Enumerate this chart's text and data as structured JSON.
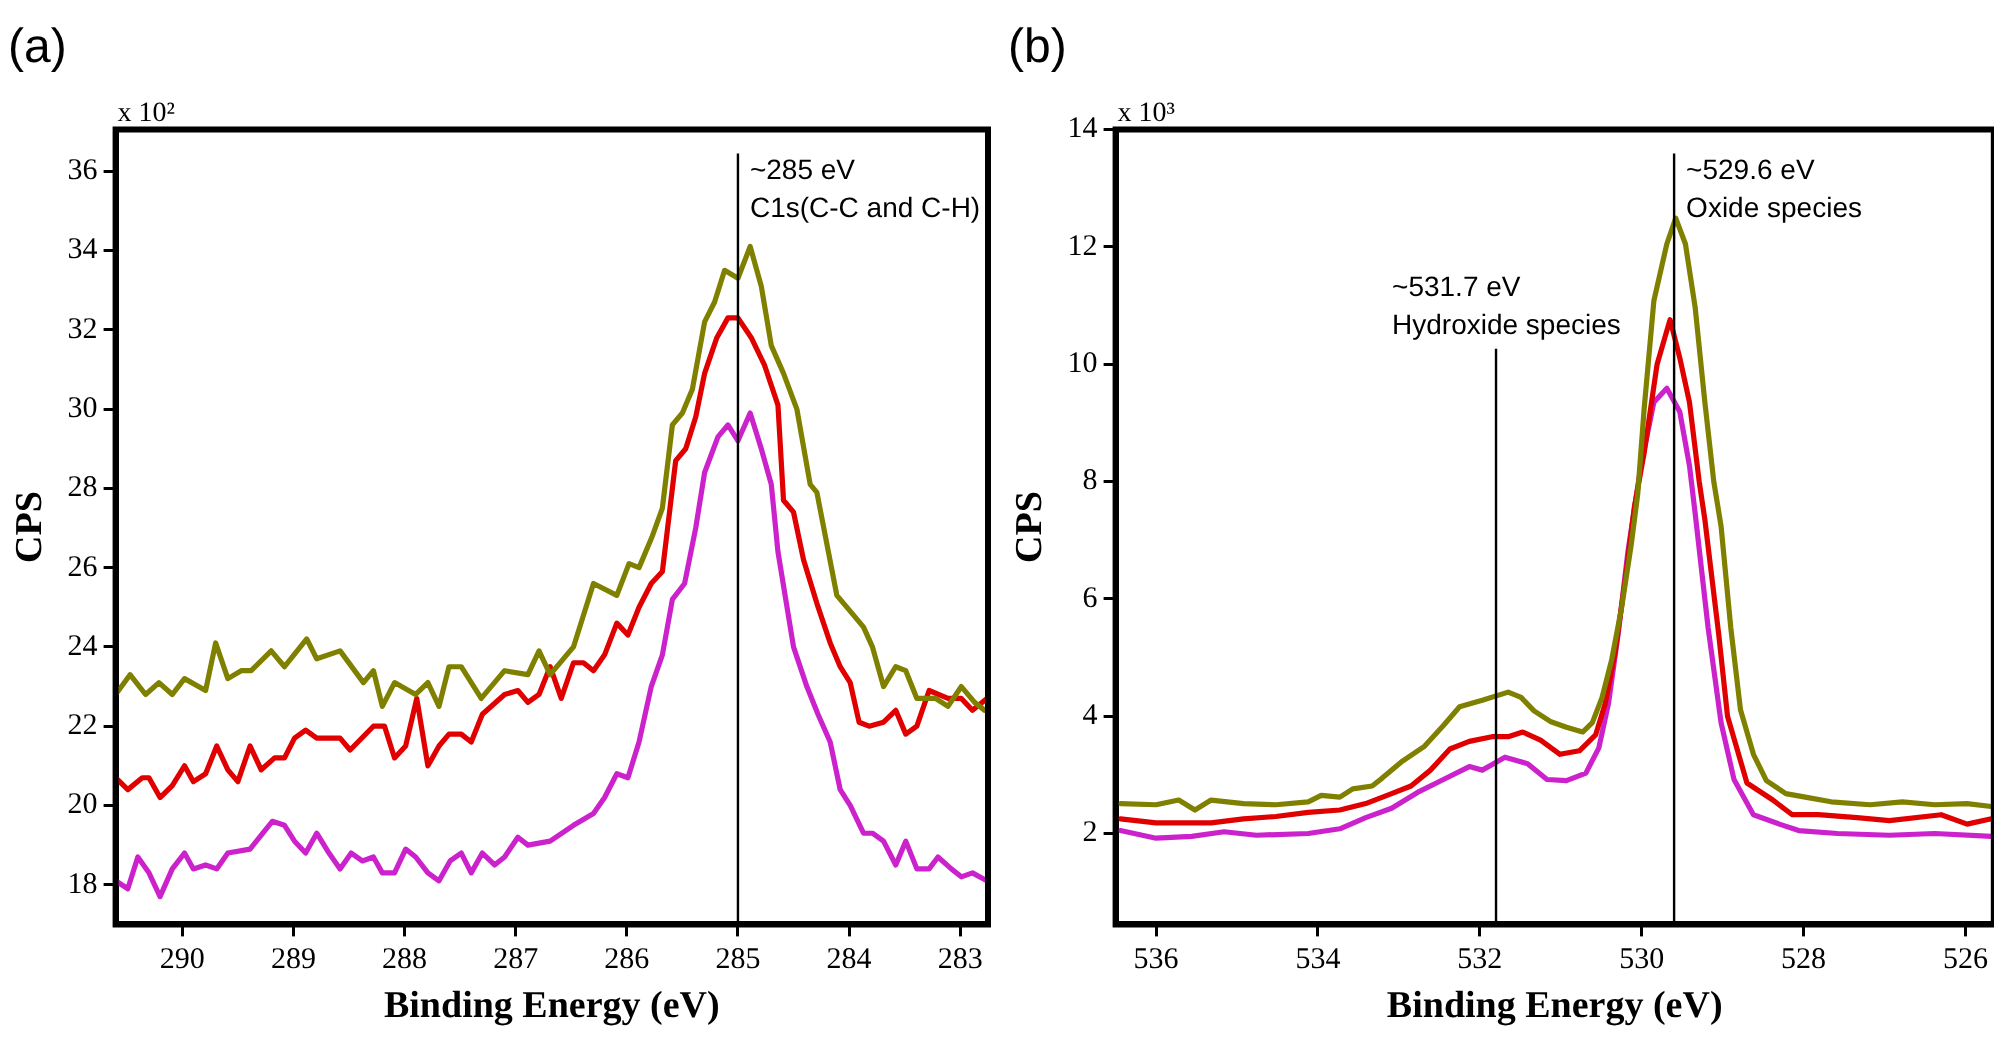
{
  "chart_data": [
    {
      "type": "line",
      "title": "(a)",
      "xlabel": "Binding Energy (eV)",
      "ylabel": "CPS",
      "xlim": [
        290.6,
        282.75
      ],
      "ylim": [
        17,
        37.05
      ],
      "xticks": [
        290,
        289,
        288,
        287,
        286,
        285,
        284,
        283
      ],
      "yticks": [
        18,
        20,
        22,
        24,
        26,
        28,
        30,
        32,
        34,
        36
      ],
      "grid": false,
      "legend": false,
      "marker": "none",
      "line_style": "solid",
      "annotations": [
        "x 10²"
      ],
      "ref_lines": [
        {
          "axis": "x",
          "value": 285,
          "label": "~285 eV\nC1s(C-C and C-H)",
          "color": "#000000"
        }
      ],
      "series": [
        {
          "color": "#808000",
          "x": [
            290.6,
            290.47,
            290.33,
            290.21,
            290.09,
            289.98,
            289.79,
            289.7,
            289.59,
            289.47,
            289.38,
            289.2,
            289.08,
            288.88,
            288.79,
            288.58,
            288.37,
            288.28,
            288.2,
            288.09,
            287.9,
            287.79,
            287.69,
            287.6,
            287.49,
            287.31,
            287.1,
            286.89,
            286.79,
            286.69,
            286.48,
            286.3,
            286.09,
            285.98,
            285.89,
            285.77,
            285.68,
            285.59,
            285.5,
            285.41,
            285.3,
            285.21,
            285.12,
            285.0,
            284.89,
            284.79,
            284.7,
            284.59,
            284.47,
            284.35,
            284.29,
            284.11,
            283.96,
            283.87,
            283.79,
            283.69,
            283.58,
            283.49,
            283.39,
            283.22,
            283.11,
            282.99,
            282.87,
            282.78
          ],
          "values": [
            22.8,
            23.3,
            22.8,
            23.1,
            22.8,
            23.2,
            22.9,
            24.1,
            23.2,
            23.4,
            23.4,
            23.9,
            23.5,
            24.2,
            23.7,
            23.9,
            23.1,
            23.4,
            22.5,
            23.1,
            22.8,
            23.1,
            22.5,
            23.5,
            23.5,
            22.7,
            23.4,
            23.3,
            23.9,
            23.3,
            24.0,
            25.6,
            25.3,
            26.1,
            26.0,
            26.8,
            27.5,
            29.6,
            29.9,
            30.5,
            32.2,
            32.7,
            33.5,
            33.3,
            34.1,
            33.1,
            31.6,
            30.9,
            30.0,
            28.1,
            27.9,
            25.3,
            24.8,
            24.5,
            24.0,
            23.0,
            23.5,
            23.4,
            22.7,
            22.7,
            22.5,
            23.0,
            22.6,
            22.4
          ]
        },
        {
          "color": "#e00000",
          "x": [
            290.6,
            290.49,
            290.36,
            290.3,
            290.2,
            290.09,
            289.98,
            289.9,
            289.79,
            289.69,
            289.59,
            289.5,
            289.39,
            289.29,
            289.17,
            289.08,
            288.99,
            288.89,
            288.79,
            288.58,
            288.49,
            288.28,
            288.18,
            288.09,
            287.99,
            287.89,
            287.79,
            287.69,
            287.6,
            287.49,
            287.4,
            287.3,
            287.1,
            286.98,
            286.89,
            286.79,
            286.69,
            286.59,
            286.48,
            286.39,
            286.3,
            286.2,
            286.09,
            285.99,
            285.89,
            285.78,
            285.68,
            285.56,
            285.47,
            285.38,
            285.3,
            285.19,
            285.09,
            285.0,
            284.88,
            284.76,
            284.64,
            284.59,
            284.5,
            284.41,
            284.29,
            284.17,
            284.08,
            283.99,
            283.91,
            283.82,
            283.69,
            283.58,
            283.49,
            283.39,
            283.28,
            283.11,
            282.99,
            282.89,
            282.76
          ],
          "values": [
            20.7,
            20.4,
            20.7,
            20.7,
            20.2,
            20.5,
            21.0,
            20.6,
            20.8,
            21.5,
            20.9,
            20.6,
            21.5,
            20.9,
            21.2,
            21.2,
            21.7,
            21.9,
            21.7,
            21.7,
            21.4,
            22.0,
            22.0,
            21.2,
            21.5,
            22.7,
            21.0,
            21.5,
            21.8,
            21.8,
            21.6,
            22.3,
            22.8,
            22.9,
            22.6,
            22.8,
            23.5,
            22.7,
            23.6,
            23.6,
            23.4,
            23.8,
            24.6,
            24.3,
            25.0,
            25.6,
            25.9,
            28.7,
            29.0,
            29.8,
            30.9,
            31.8,
            32.3,
            32.3,
            31.8,
            31.1,
            30.1,
            27.7,
            27.4,
            26.2,
            25.1,
            24.1,
            23.5,
            23.1,
            22.1,
            22.0,
            22.1,
            22.4,
            21.8,
            22.0,
            22.9,
            22.7,
            22.7,
            22.4,
            22.7
          ]
        },
        {
          "color": "#cc22cc",
          "x": [
            290.6,
            290.49,
            290.4,
            290.3,
            290.2,
            290.09,
            289.98,
            289.9,
            289.79,
            289.69,
            289.59,
            289.39,
            289.19,
            289.08,
            288.99,
            288.89,
            288.79,
            288.68,
            288.58,
            288.48,
            288.38,
            288.28,
            288.2,
            288.09,
            287.99,
            287.9,
            287.79,
            287.69,
            287.59,
            287.49,
            287.4,
            287.3,
            287.19,
            287.1,
            286.98,
            286.89,
            286.69,
            286.48,
            286.3,
            286.2,
            286.09,
            285.99,
            285.89,
            285.78,
            285.68,
            285.59,
            285.48,
            285.38,
            285.3,
            285.18,
            285.09,
            285.0,
            284.89,
            284.79,
            284.7,
            284.64,
            284.5,
            284.38,
            284.28,
            284.17,
            284.08,
            283.99,
            283.87,
            283.79,
            283.69,
            283.58,
            283.49,
            283.39,
            283.28,
            283.2,
            283.08,
            282.99,
            282.89,
            282.76
          ],
          "values": [
            18.1,
            17.9,
            18.7,
            18.3,
            17.7,
            18.4,
            18.8,
            18.4,
            18.5,
            18.4,
            18.8,
            18.9,
            19.6,
            19.5,
            19.1,
            18.8,
            19.3,
            18.8,
            18.4,
            18.8,
            18.6,
            18.7,
            18.3,
            18.3,
            18.9,
            18.7,
            18.3,
            18.1,
            18.6,
            18.8,
            18.3,
            18.8,
            18.5,
            18.7,
            19.2,
            19.0,
            19.1,
            19.5,
            19.8,
            20.2,
            20.8,
            20.7,
            21.6,
            23.0,
            23.8,
            25.2,
            25.6,
            27.0,
            28.4,
            29.3,
            29.6,
            29.2,
            29.9,
            29.0,
            28.1,
            26.4,
            24.0,
            23.0,
            22.3,
            21.6,
            20.4,
            20.0,
            19.3,
            19.3,
            19.1,
            18.5,
            19.1,
            18.4,
            18.4,
            18.7,
            18.4,
            18.2,
            18.3,
            18.1
          ]
        }
      ]
    },
    {
      "type": "line",
      "title": "(b)",
      "xlabel": "Binding Energy (eV)",
      "ylabel": "CPS",
      "xlim": [
        536.5,
        525.65
      ],
      "ylim": [
        0.45,
        14
      ],
      "xticks": [
        536,
        534,
        532,
        530,
        528,
        526
      ],
      "yticks": [
        2,
        4,
        6,
        8,
        10,
        12,
        14
      ],
      "grid": false,
      "legend": false,
      "marker": "none",
      "line_style": "solid",
      "annotations": [
        "x 10³",
        {
          "text": "~531.7 eV\nHydroxide species",
          "x": 531.8,
          "y": 10.4
        }
      ],
      "ref_lines": [
        {
          "axis": "x",
          "value": 531.8,
          "color": "#000000"
        },
        {
          "axis": "x",
          "value": 529.6,
          "label": "~529.6 eV\nOxide species",
          "color": "#000000"
        }
      ],
      "series": [
        {
          "color": "#808000",
          "x": [
            536.44,
            536.0,
            535.72,
            535.52,
            535.32,
            534.92,
            534.52,
            534.12,
            533.96,
            533.73,
            533.57,
            533.33,
            533.21,
            532.97,
            532.69,
            532.45,
            532.25,
            531.97,
            531.65,
            531.49,
            531.33,
            531.13,
            530.93,
            530.73,
            530.61,
            530.49,
            530.37,
            530.25,
            530.13,
            530.05,
            529.97,
            529.85,
            529.69,
            529.58,
            529.46,
            529.34,
            529.22,
            529.11,
            529.02,
            528.9,
            528.78,
            528.62,
            528.46,
            528.22,
            527.98,
            527.66,
            527.18,
            526.78,
            526.38,
            525.98,
            525.68
          ],
          "values": [
            2.51,
            2.49,
            2.57,
            2.4,
            2.57,
            2.51,
            2.49,
            2.54,
            2.65,
            2.62,
            2.76,
            2.81,
            2.94,
            3.22,
            3.48,
            3.84,
            4.16,
            4.27,
            4.41,
            4.32,
            4.09,
            3.91,
            3.81,
            3.73,
            3.89,
            4.32,
            4.97,
            5.84,
            6.92,
            7.78,
            9.24,
            11.08,
            12.05,
            12.49,
            12.05,
            10.97,
            9.35,
            8.0,
            7.24,
            5.51,
            4.11,
            3.35,
            2.9,
            2.68,
            2.62,
            2.54,
            2.49,
            2.54,
            2.49,
            2.51,
            2.46
          ]
        },
        {
          "color": "#e00000",
          "x": [
            536.44,
            536.0,
            535.32,
            534.92,
            534.52,
            534.12,
            533.73,
            533.41,
            533.09,
            532.85,
            532.61,
            532.37,
            532.13,
            531.85,
            531.65,
            531.47,
            531.25,
            531.01,
            530.77,
            530.57,
            530.45,
            530.33,
            530.21,
            530.09,
            529.97,
            529.81,
            529.65,
            529.53,
            529.41,
            529.29,
            529.22,
            529.05,
            528.94,
            528.7,
            528.38,
            528.14,
            527.82,
            527.34,
            526.94,
            526.3,
            525.98,
            525.68
          ],
          "values": [
            2.25,
            2.18,
            2.18,
            2.25,
            2.29,
            2.36,
            2.4,
            2.51,
            2.68,
            2.81,
            3.08,
            3.44,
            3.57,
            3.65,
            3.65,
            3.73,
            3.59,
            3.35,
            3.41,
            3.68,
            4.22,
            5.08,
            6.27,
            7.57,
            8.49,
            10.0,
            10.76,
            10.11,
            9.35,
            8.0,
            7.35,
            5.41,
            4.0,
            2.86,
            2.57,
            2.32,
            2.32,
            2.27,
            2.22,
            2.32,
            2.16,
            2.25
          ]
        },
        {
          "color": "#cc22cc",
          "x": [
            536.44,
            536.0,
            535.56,
            535.16,
            534.76,
            534.12,
            533.73,
            533.41,
            533.09,
            532.77,
            532.45,
            532.13,
            531.97,
            531.69,
            531.41,
            531.17,
            530.93,
            530.69,
            530.53,
            530.41,
            530.29,
            530.17,
            530.01,
            529.85,
            529.69,
            529.53,
            529.41,
            529.34,
            529.18,
            529.02,
            528.86,
            528.62,
            528.3,
            528.06,
            527.58,
            526.94,
            526.38,
            525.68
          ],
          "values": [
            2.05,
            1.92,
            1.95,
            2.03,
            1.97,
            2.0,
            2.08,
            2.27,
            2.43,
            2.7,
            2.92,
            3.14,
            3.08,
            3.3,
            3.19,
            2.92,
            2.9,
            3.03,
            3.46,
            4.22,
            5.41,
            6.81,
            8.27,
            9.35,
            9.59,
            9.19,
            8.27,
            7.46,
            5.51,
            3.89,
            2.92,
            2.32,
            2.16,
            2.05,
            2.0,
            1.97,
            2.0,
            1.95
          ]
        }
      ]
    }
  ]
}
